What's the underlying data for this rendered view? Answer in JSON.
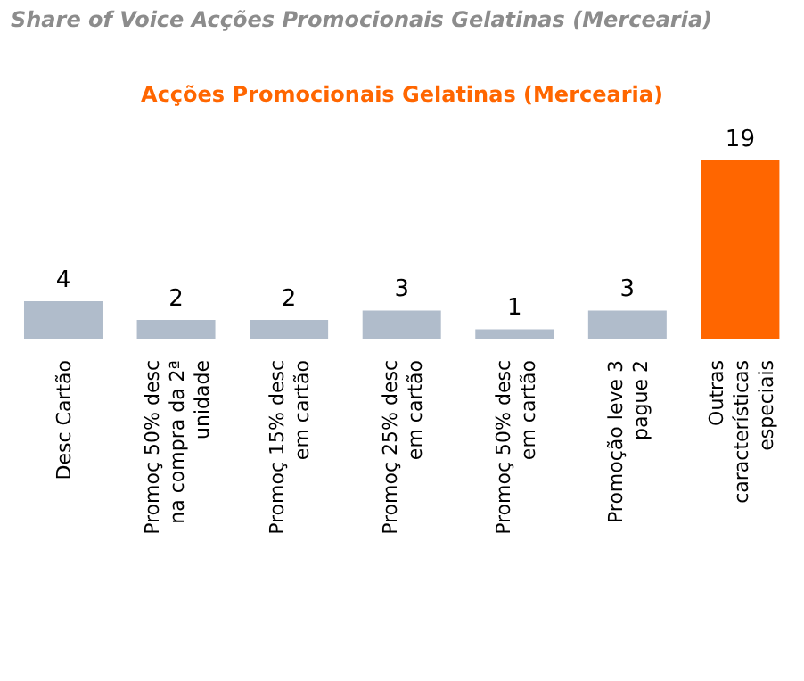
{
  "chart_data": {
    "type": "bar",
    "title": "Share of Voice Acções Promocionais Gelatinas (Mercearia)",
    "subtitle": "Acções Promocionais Gelatinas (Mercearia)",
    "categories": [
      "Desc Cartão",
      "Promoç 50% desc na compra da 2ª unidade",
      "Promoç 15% desc em cartão",
      "Promoç 25% desc em cartão",
      "Promoç 50% desc em cartão",
      "Promoção leve 3 pague 2",
      "Outras características especiais"
    ],
    "values": [
      4,
      2,
      2,
      3,
      1,
      3,
      19
    ],
    "colors": [
      "#b0bccb",
      "#b0bccb",
      "#b0bccb",
      "#b0bccb",
      "#b0bccb",
      "#b0bccb",
      "#ff6600"
    ],
    "data_labels": true,
    "grid": false,
    "legend": false
  }
}
